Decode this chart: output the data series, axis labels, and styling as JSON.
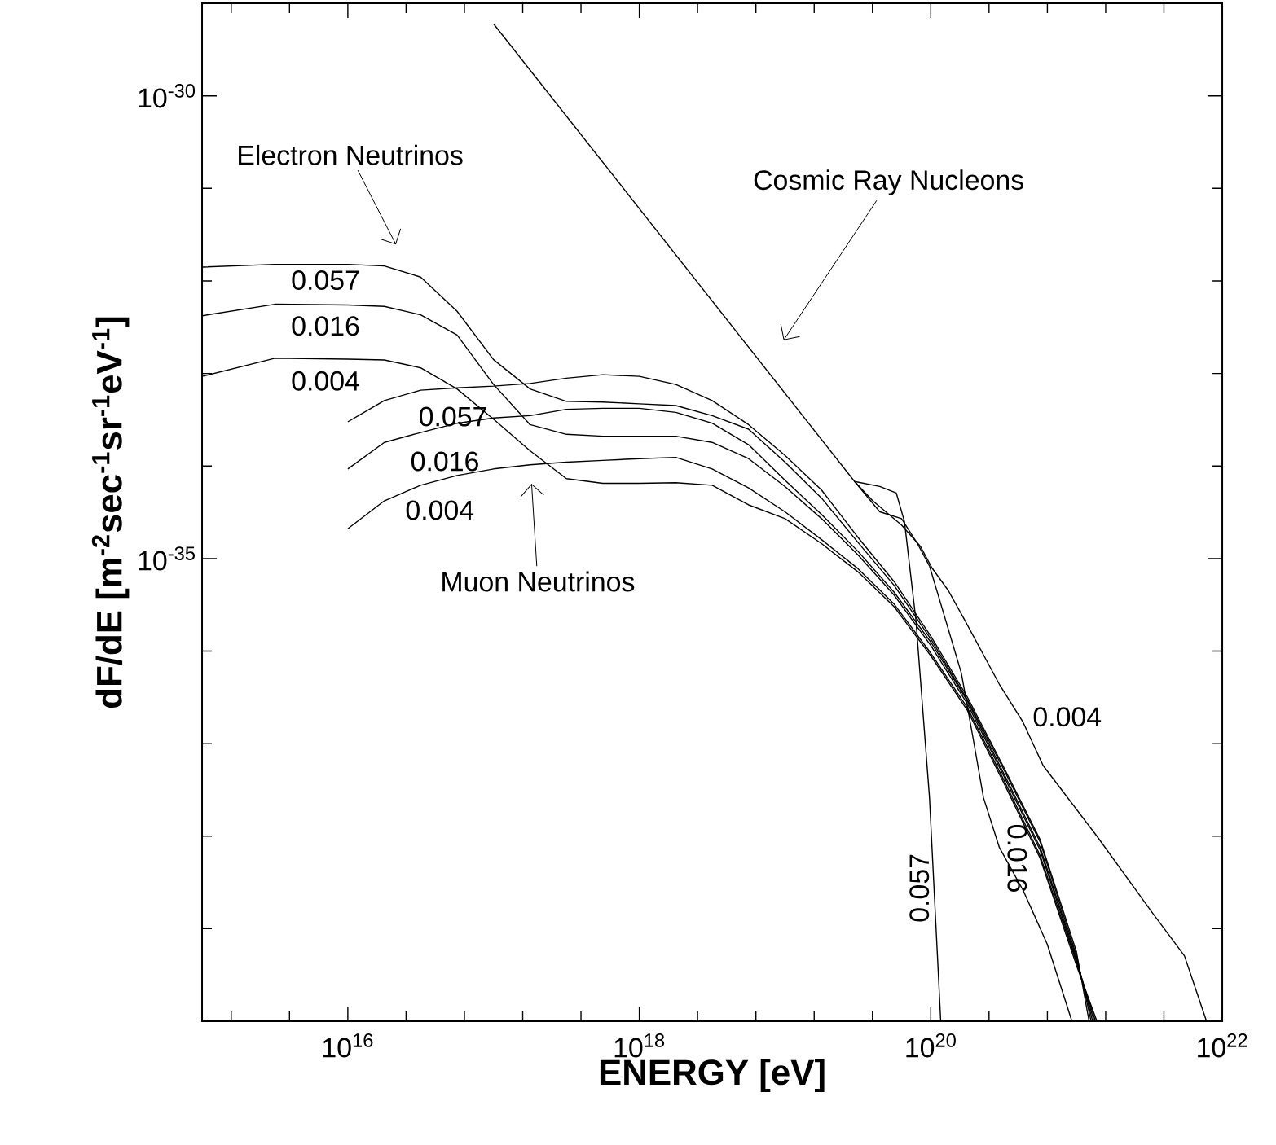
{
  "chart_data": {
    "type": "line",
    "xlabel": "ENERGY [eV]",
    "ylabel": "dF/dE  [m$^{-2}$sec$^{-1}$sr$^{-1}$eV$^{-1}$]",
    "log": "xy",
    "xlim": [
      1000000000000000.0,
      1e+22
    ],
    "ylim": [
      1e-40,
      1e-29
    ],
    "xticks": [
      {
        "value": 1585000000000000.0,
        "label": null
      },
      {
        "value": 3980000000000000.0,
        "label": null
      },
      {
        "value": 1e+16,
        "label": "10$^{16}$"
      },
      {
        "value": 2.51e+16,
        "label": null
      },
      {
        "value": 6.31e+16,
        "label": null
      },
      {
        "value": 1.585e+17,
        "label": null
      },
      {
        "value": 3.98e+17,
        "label": null
      },
      {
        "value": 1e+18,
        "label": "10$^{18}$"
      },
      {
        "value": 2.51e+18,
        "label": null
      },
      {
        "value": 6.31e+18,
        "label": null
      },
      {
        "value": 1.585e+19,
        "label": null
      },
      {
        "value": 3.98e+19,
        "label": null
      },
      {
        "value": 1e+20,
        "label": "10$^{20}$"
      },
      {
        "value": 2.51e+20,
        "label": null
      },
      {
        "value": 6.31e+20,
        "label": null
      },
      {
        "value": 1.585e+21,
        "label": null
      },
      {
        "value": 3.98e+21,
        "label": null
      },
      {
        "value": 1e+22,
        "label": "10$^{22}$"
      }
    ],
    "yticks": [
      {
        "value": 1e-39,
        "label": null
      },
      {
        "value": 1e-38,
        "label": null
      },
      {
        "value": 1e-37,
        "label": null
      },
      {
        "value": 1e-36,
        "label": null
      },
      {
        "value": 1e-35,
        "label": "10$^{-35}$"
      },
      {
        "value": 1e-34,
        "label": null
      },
      {
        "value": 1e-33,
        "label": null
      },
      {
        "value": 1e-32,
        "label": null
      },
      {
        "value": 1e-31,
        "label": null
      },
      {
        "value": 1e-30,
        "label": "10$^{-30}$"
      }
    ],
    "series": [
      {
        "color": "#000000",
        "x": [
          1e+17,
          3e+19,
          4.47e+19,
          5.8e+19,
          6.6e+19,
          7.9e+19,
          9.8e+19,
          1.17e+20
        ],
        "values": [
          6e-30,
          6.8e-35,
          6e-35,
          5.1e-35,
          2.5e-35,
          2.2e-36,
          2.6e-38,
          1e-40
        ]
      },
      {
        "color": "#000000",
        "x": [
          3e+19,
          4.47e+19,
          6.3e+19,
          8.1e+19,
          9.8e+19,
          1.26e+20,
          1.62e+20,
          1.95e+20,
          2.3e+20,
          2.95e+20,
          4.3e+20,
          6.3e+20,
          9.3e+20
        ],
        "values": [
          6.8e-35,
          3.2e-35,
          2.7e-35,
          1.45e-35,
          8.3e-36,
          2.2e-36,
          5.8e-37,
          1.15e-37,
          2.6e-38,
          7.6e-39,
          2.6e-39,
          6.8e-40,
          1e-40
        ]
      },
      {
        "color": "#000000",
        "x": [
          3e+19,
          4e+19,
          6.3e+19,
          8.5e+19,
          1.02e+20,
          1.32e+20,
          1.7e+20,
          2.95e+20,
          4.3e+20,
          5.9e+20,
          1.38e+21,
          3.3e+21,
          5.5e+21,
          7.8e+21
        ],
        "values": [
          6.8e-35,
          4.2e-35,
          2.3e-35,
          1.35e-35,
          7.9e-36,
          4.5e-36,
          2.2e-36,
          4.4e-37,
          1.7e-37,
          5.8e-38,
          1e-38,
          1.5e-39,
          5.1e-40,
          1e-40
        ]
      },
      {
        "color": "#000000",
        "x": [
          1000000000000000.0,
          3160000000000000.0,
          1e+16,
          1.78e+16,
          3.16e+16,
          5.62e+16,
          1e+17,
          1.78e+17,
          3.16e+17,
          5.62e+17,
          1e+18,
          1.78e+18,
          3.16e+18,
          5.62e+18,
          1e+19,
          1.78e+19,
          3.16e+19,
          5.62e+19,
          1e+20,
          1.78e+20,
          3.16e+20,
          5.62e+20,
          1e+21,
          1.26e+21
        ],
        "values": [
          1.41e-32,
          1.51e-32,
          1.51e-32,
          1.45e-32,
          1.1e-32,
          4.7e-33,
          1.41e-33,
          6.8e-34,
          5e-34,
          4.9e-34,
          4.7e-34,
          4.5e-34,
          3.5e-34,
          2.5e-34,
          1.1e-34,
          4.5e-35,
          1.5e-35,
          5.1e-36,
          1.35e-36,
          3e-37,
          5.3e-38,
          8.7e-39,
          5.1e-40,
          1e-40
        ]
      },
      {
        "color": "#000000",
        "x": [
          1000000000000000.0,
          3160000000000000.0,
          1e+16,
          1.78e+16,
          3.16e+16,
          5.62e+16,
          1e+17,
          1.78e+17,
          3.16e+17,
          5.62e+17,
          1e+18,
          1.78e+18,
          3.16e+18,
          5.62e+18,
          1e+19,
          1.78e+19,
          3.16e+19,
          5.62e+19,
          1e+20,
          1.78e+20,
          3.16e+20,
          5.62e+20,
          1e+21,
          1.32e+21
        ],
        "values": [
          4.2e-33,
          5.6e-33,
          5.5e-33,
          5.3e-33,
          4.3e-33,
          2.6e-33,
          7.6e-34,
          2.8e-34,
          2.2e-34,
          2.1e-34,
          2.1e-34,
          2.1e-34,
          1.8e-34,
          1.2e-34,
          6e-35,
          2.7e-35,
          1.1e-35,
          4e-36,
          1.15e-36,
          2.7e-37,
          4.5e-38,
          7.1e-39,
          4.5e-40,
          1e-40
        ]
      },
      {
        "color": "#000000",
        "x": [
          1000000000000000.0,
          3160000000000000.0,
          1e+16,
          1.78e+16,
          3.16e+16,
          5.62e+16,
          1e+17,
          1.78e+17,
          3.16e+17,
          5.62e+17,
          1e+18,
          1.78e+18,
          3.16e+18,
          5.62e+18,
          1e+19,
          1.78e+19,
          3.16e+19,
          5.62e+19,
          1e+20,
          1.78e+20,
          3.16e+20,
          5.62e+20,
          1e+21,
          1.38e+21
        ],
        "values": [
          9.3e-34,
          1.46e-33,
          1.43e-33,
          1.4e-33,
          1.15e-33,
          6.8e-34,
          3.2e-34,
          1.46e-34,
          7.3e-35,
          6.5e-35,
          6.5e-35,
          6.6e-35,
          6.2e-35,
          3.8e-35,
          2.7e-35,
          1.45e-35,
          7.2e-36,
          3e-36,
          8.9e-37,
          2.3e-37,
          3.8e-38,
          5.8e-39,
          4e-40,
          1e-40
        ]
      },
      {
        "color": "#000000",
        "x": [
          1e+16,
          1.78e+16,
          3.16e+16,
          5.62e+16,
          1e+17,
          1.78e+17,
          3.16e+17,
          5.62e+17,
          1e+18,
          1.78e+18,
          3.16e+18,
          5.62e+18,
          1e+19,
          1.78e+19,
          3.16e+19,
          5.62e+19,
          1e+20,
          1.78e+20,
          3.16e+20,
          5.62e+20,
          1e+21,
          1.22e+21
        ],
        "values": [
          3e-34,
          5.1e-34,
          6.6e-34,
          7e-34,
          7.3e-34,
          7.8e-34,
          8.9e-34,
          9.7e-34,
          9.3e-34,
          7.6e-34,
          5.1e-34,
          2.8e-34,
          1.3e-34,
          5.5e-35,
          1.7e-35,
          5.6e-36,
          1.45e-36,
          3.2e-37,
          5.6e-38,
          9.2e-39,
          5.6e-40,
          1e-40
        ]
      },
      {
        "color": "#000000",
        "x": [
          1e+16,
          1.78e+16,
          3.16e+16,
          5.62e+16,
          1e+17,
          1.78e+17,
          3.16e+17,
          5.62e+17,
          1e+18,
          1.78e+18,
          3.16e+18,
          5.62e+18,
          1e+19,
          1.78e+19,
          3.16e+19,
          5.62e+19,
          1e+20,
          1.78e+20,
          3.16e+20,
          5.62e+20,
          1e+21,
          1.29e+21
        ],
        "values": [
          9.3e-35,
          1.8e-34,
          2.3e-34,
          2.9e-34,
          3.3e-34,
          3.5e-34,
          4.1e-34,
          4.2e-34,
          4.2e-34,
          3.8e-34,
          2.9e-34,
          1.7e-34,
          7e-35,
          3e-35,
          1.2e-35,
          4.3e-36,
          1.25e-36,
          2.9e-37,
          4.8e-38,
          7.6e-39,
          4.8e-40,
          1e-40
        ]
      },
      {
        "color": "#000000",
        "x": [
          1e+16,
          1.78e+16,
          3.16e+16,
          5.62e+16,
          1e+17,
          1.78e+17,
          3.16e+17,
          5.62e+17,
          1e+18,
          1.78e+18,
          3.16e+18,
          5.62e+18,
          1e+19,
          1.78e+19,
          3.16e+19,
          5.62e+19,
          1e+20,
          1.78e+20,
          3.16e+20,
          5.62e+20,
          1e+21,
          1.35e+21
        ],
        "values": [
          2.1e-35,
          4.2e-35,
          6.2e-35,
          7.9e-35,
          9.3e-35,
          1.03e-34,
          1.1e-34,
          1.15e-34,
          1.2e-34,
          1.24e-34,
          9.3e-35,
          5.8e-35,
          3.2e-35,
          1.6e-35,
          7.8e-36,
          3.2e-36,
          9.5e-37,
          2.45e-37,
          4.1e-38,
          6.2e-39,
          4.3e-40,
          1e-40
        ]
      }
    ],
    "annotations": [
      "Electron Neutrinos",
      "Cosmic Ray Nucleons",
      "Muon Neutrinos",
      "0.057",
      "0.016",
      "0.004",
      "0.057",
      "0.016",
      "0.004",
      "0.004",
      "0.057",
      "0.016"
    ]
  }
}
